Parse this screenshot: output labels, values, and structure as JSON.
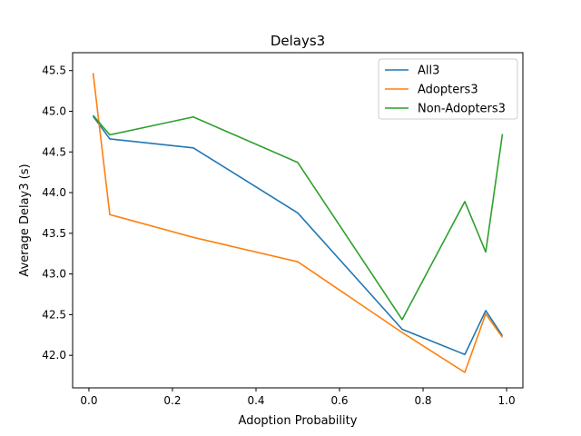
{
  "chart_data": {
    "type": "line",
    "title": "Delays3",
    "xlabel": "Adoption Probability",
    "ylabel": "Average Delay3 (s)",
    "xlim": [
      -0.039,
      1.039
    ],
    "ylim": [
      41.6,
      45.72
    ],
    "xticks": [
      0.0,
      0.2,
      0.4,
      0.6,
      0.8,
      1.0
    ],
    "xtick_labels": [
      "0.0",
      "0.2",
      "0.4",
      "0.6",
      "0.8",
      "1.0"
    ],
    "yticks": [
      42.0,
      42.5,
      43.0,
      43.5,
      44.0,
      44.5,
      45.0,
      45.5
    ],
    "ytick_labels": [
      "42.0",
      "42.5",
      "43.0",
      "43.5",
      "44.0",
      "44.5",
      "45.0",
      "45.5"
    ],
    "grid": false,
    "legend_position": "top-right",
    "x": [
      0.01,
      0.05,
      0.25,
      0.5,
      0.75,
      0.9,
      0.95,
      0.99
    ],
    "series": [
      {
        "name": "All3",
        "color": "#1f77b4",
        "values": [
          44.94,
          44.66,
          44.55,
          43.75,
          42.32,
          42.01,
          42.55,
          42.24
        ]
      },
      {
        "name": "Adopters3",
        "color": "#ff7f0e",
        "values": [
          45.47,
          43.73,
          43.45,
          43.15,
          42.28,
          41.79,
          42.51,
          42.22
        ]
      },
      {
        "name": "Non-Adopters3",
        "color": "#2ca02c",
        "values": [
          44.95,
          44.71,
          44.93,
          44.37,
          42.44,
          43.89,
          43.27,
          44.72
        ]
      }
    ]
  }
}
